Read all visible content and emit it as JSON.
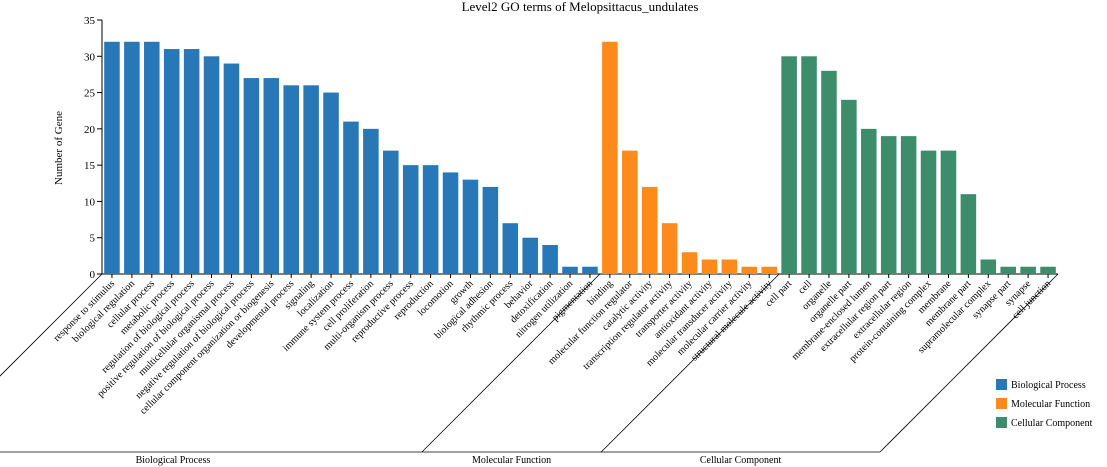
{
  "chart_data": {
    "type": "bar",
    "title": "Level2 GO terms of Melopsittacus_undulates",
    "xlabel": "",
    "ylabel": "Number of Gene",
    "ylim": [
      0,
      35
    ],
    "yticks": [
      0,
      5,
      10,
      15,
      20,
      25,
      30,
      35
    ],
    "grid": false,
    "legend_position": "bottom-right",
    "groups": [
      {
        "name": "Biological Process",
        "color": "#2878b8",
        "categories": [
          "response to stimulus",
          "biological regulation",
          "cellular process",
          "metabolic process",
          "regulation of biological process",
          "positive regulation of biological process",
          "multicellular organismal process",
          "negative regulation of biological process",
          "cellular component organization or biogenesis",
          "developmental process",
          "signaling",
          "localization",
          "immune system process",
          "cell proliferation",
          "multi-organism process",
          "reproductive process",
          "reproduction",
          "locomotion",
          "growth",
          "biological adhesion",
          "rhythmic process",
          "behavior",
          "detoxification",
          "nitrogen utilization",
          "pigmentation"
        ],
        "values": [
          32,
          32,
          32,
          31,
          31,
          30,
          29,
          27,
          27,
          26,
          26,
          25,
          21,
          20,
          17,
          15,
          15,
          14,
          13,
          12,
          7,
          5,
          4,
          1,
          1
        ]
      },
      {
        "name": "Molecular Function",
        "color": "#ff8a1c",
        "categories": [
          "binding",
          "molecular function regulator",
          "catalytic activity",
          "transcription regulator activity",
          "transporter activity",
          "antioxidant activity",
          "molecular transducer activity",
          "molecular carrier activity",
          "structural molecule activity"
        ],
        "values": [
          32,
          17,
          12,
          7,
          3,
          2,
          2,
          1,
          1
        ]
      },
      {
        "name": "Cellular Component",
        "color": "#3d8c6c",
        "categories": [
          "cell part",
          "cell",
          "organelle",
          "organelle part",
          "membrane-enclosed lumen",
          "extracellular region part",
          "extracellular region",
          "protein-containing complex",
          "membrane",
          "membrane part",
          "supramolecular complex",
          "synapse part",
          "synapse",
          "cell junction"
        ],
        "values": [
          30,
          30,
          28,
          24,
          20,
          19,
          19,
          17,
          17,
          11,
          2,
          1,
          1,
          1
        ]
      }
    ]
  }
}
